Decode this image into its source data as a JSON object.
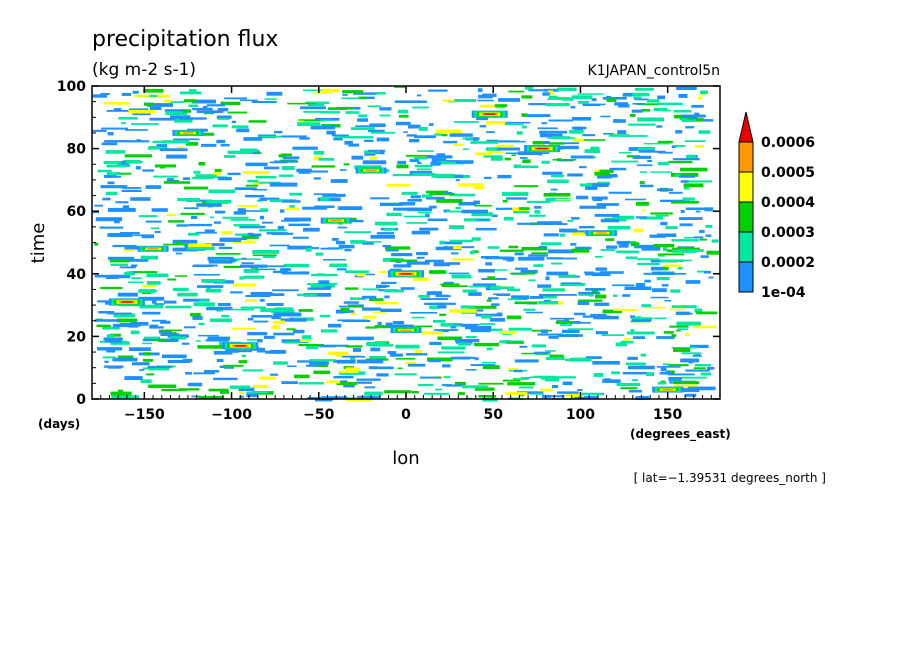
{
  "chart_data": {
    "type": "heatmap",
    "title": "precipitation flux",
    "units": "(kg m-2 s-1)",
    "run_label": "K1JAPAN_control5n",
    "xlabel": "lon",
    "xunits": "(degrees_east)",
    "ylabel": "time",
    "yunits": "(days)",
    "xlim": [
      -180,
      180
    ],
    "ylim": [
      0,
      100
    ],
    "xticks": [
      -150,
      -100,
      -50,
      0,
      50,
      100,
      150
    ],
    "yticks": [
      0,
      20,
      40,
      60,
      80,
      100
    ],
    "xtick_labels": [
      "−150",
      "−100",
      "−50",
      "0",
      "50",
      "100",
      "150"
    ],
    "ytick_labels": [
      "0",
      "20",
      "40",
      "60",
      "80",
      "100"
    ],
    "levels": [
      0.0001,
      0.0002,
      0.0003,
      0.0004,
      0.0005,
      0.0006
    ],
    "level_labels": [
      "1e-04",
      "0.0002",
      "0.0003",
      "0.0004",
      "0.0005",
      "0.0006"
    ],
    "level_colors": [
      "#1e90ff",
      "#00e8a0",
      "#00d000",
      "#ffff00",
      "#ff9900",
      "#ee0000"
    ],
    "colorbar_extend": "max",
    "footer": "[ lat=−1.39531 degrees_north ]",
    "peak_events": [
      {
        "lon": 0,
        "time": 40,
        "level": 6
      },
      {
        "lon": 48,
        "time": 91,
        "level": 6
      },
      {
        "lon": 78,
        "time": 80,
        "level": 6
      },
      {
        "lon": -160,
        "time": 31,
        "level": 6
      },
      {
        "lon": -95,
        "time": 17,
        "level": 6
      },
      {
        "lon": -125,
        "time": 85,
        "level": 5
      },
      {
        "lon": -145,
        "time": 48,
        "level": 5
      },
      {
        "lon": 112,
        "time": 53,
        "level": 5
      },
      {
        "lon": 0,
        "time": 22,
        "level": 5
      },
      {
        "lon": -40,
        "time": 57,
        "level": 5
      },
      {
        "lon": 150,
        "time": 3,
        "level": 5
      },
      {
        "lon": -20,
        "time": 73,
        "level": 5
      }
    ]
  }
}
